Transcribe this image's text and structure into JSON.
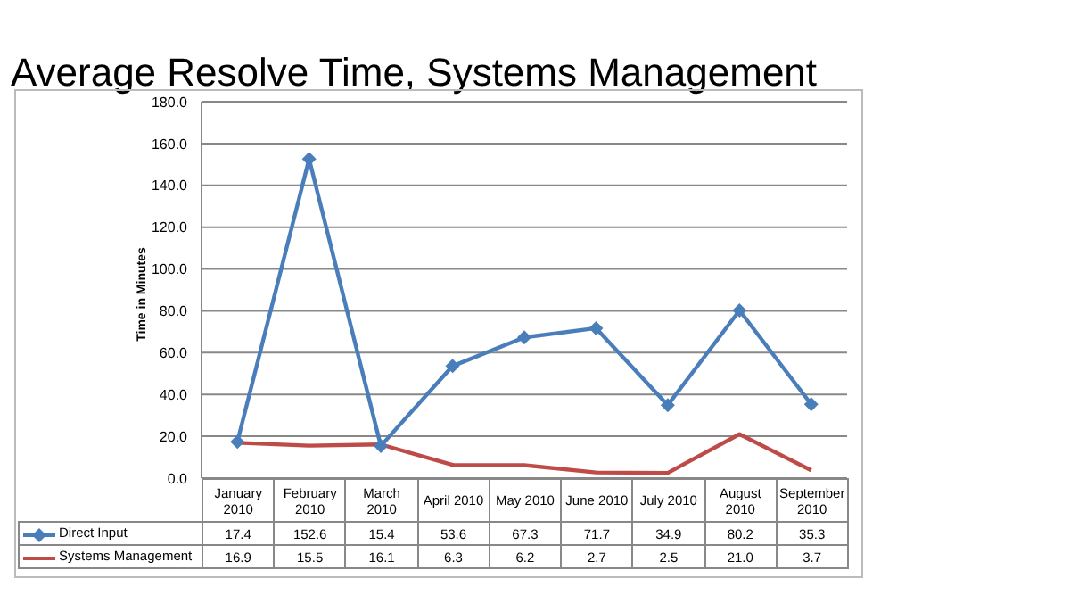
{
  "chart_data": {
    "type": "line",
    "title": "Average Resolve Time, Systems Management",
    "ylabel": "Time in Minutes",
    "categories": [
      "January 2010",
      "February 2010",
      "March 2010",
      "April 2010",
      "May 2010",
      "June 2010",
      "July 2010",
      "August 2010",
      "September 2010"
    ],
    "series": [
      {
        "name": "Direct Input",
        "color": "#4a7ebb",
        "marker": "diamond",
        "values": [
          17.4,
          152.6,
          15.4,
          53.6,
          67.3,
          71.7,
          34.9,
          80.2,
          35.3
        ],
        "value_labels": [
          "17.4",
          "152.6",
          "15.4",
          "53.6",
          "67.3",
          "71.7",
          "34.9",
          "80.2",
          "35.3"
        ]
      },
      {
        "name": "Systems Management",
        "color": "#be4b48",
        "marker": "none",
        "values": [
          16.9,
          15.5,
          16.1,
          6.3,
          6.2,
          2.7,
          2.5,
          21.0,
          3.7
        ],
        "value_labels": [
          "16.9",
          "15.5",
          "16.1",
          "6.3",
          "6.2",
          "2.7",
          "2.5",
          "21.0",
          "3.7"
        ]
      }
    ],
    "ylim": [
      0,
      180
    ],
    "yticks": [
      {
        "value": 0,
        "label": "0.0"
      },
      {
        "value": 20,
        "label": "20.0"
      },
      {
        "value": 40,
        "label": "40.0"
      },
      {
        "value": 60,
        "label": "60.0"
      },
      {
        "value": 80,
        "label": "80.0"
      },
      {
        "value": 100,
        "label": "100.0"
      },
      {
        "value": 120,
        "label": "120.0"
      },
      {
        "value": 140,
        "label": "140.0"
      },
      {
        "value": 160,
        "label": "160.0"
      },
      {
        "value": 180,
        "label": "180.0"
      }
    ],
    "grid": "y",
    "legend": "bottom left",
    "line_style": "solid"
  }
}
